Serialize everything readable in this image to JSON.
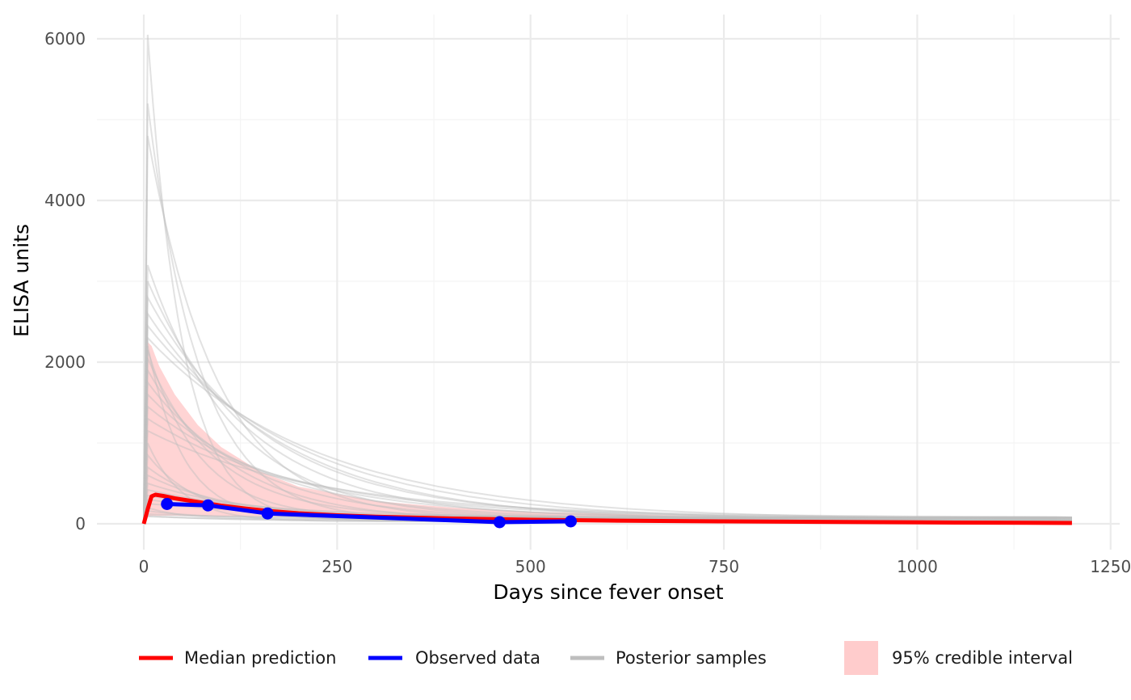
{
  "chart_data": {
    "type": "line",
    "title": "",
    "xlabel": "Days since fever onset",
    "ylabel": "ELISA units",
    "xlim": [
      -15,
      1265
    ],
    "ylim": [
      -300,
      6100
    ],
    "x_ticks": [
      0,
      250,
      500,
      750,
      1000,
      1250
    ],
    "x_tick_labels": [
      "0",
      "250",
      "500",
      "750",
      "1000",
      "1250"
    ],
    "y_ticks": [
      0,
      2000,
      4000,
      6000
    ],
    "y_tick_labels": [
      "0",
      "2000",
      "4000",
      "6000"
    ],
    "grid": true,
    "legend_position": "bottom",
    "colors": {
      "median": "#ff0000",
      "observed": "#0000ff",
      "samples": "#bebebe",
      "ci_fill": "#ffcccc",
      "grid_major": "#ebebeb",
      "grid_minor": "#f4f4f4"
    },
    "series": [
      {
        "name": "Median prediction",
        "x": [
          0,
          5,
          10,
          15,
          25,
          40,
          60,
          80,
          100,
          130,
          160,
          200,
          250,
          300,
          400,
          500,
          600,
          750,
          900,
          1050,
          1200
        ],
        "y": [
          0,
          180,
          340,
          360,
          345,
          315,
          285,
          255,
          225,
          190,
          160,
          130,
          105,
          88,
          65,
          50,
          40,
          30,
          22,
          15,
          10
        ]
      },
      {
        "name": "Observed data",
        "x": [
          30,
          83,
          160,
          460,
          552
        ],
        "y": [
          245,
          228,
          128,
          20,
          30
        ]
      },
      {
        "name": "Posterior samples",
        "peak_day": 5,
        "peaks": [
          6050,
          5200,
          4800,
          3200,
          3000,
          2800,
          2600,
          2450,
          2300,
          2200,
          2150,
          2050,
          1900,
          1750,
          1600,
          1450,
          1300,
          1150,
          1000,
          850,
          700,
          600,
          500,
          420,
          350,
          300,
          250,
          200,
          160,
          120,
          100,
          90
        ],
        "x_end": 1200
      },
      {
        "name": "95% credible interval",
        "x": [
          0,
          5,
          10,
          20,
          40,
          70,
          100,
          150,
          200,
          300,
          400,
          500,
          700,
          900,
          1200
        ],
        "lower": [
          0,
          90,
          100,
          100,
          100,
          95,
          92,
          88,
          85,
          80,
          72,
          65,
          55,
          45,
          30
        ],
        "upper": [
          0,
          2250,
          2200,
          1950,
          1600,
          1220,
          950,
          650,
          460,
          280,
          200,
          150,
          100,
          75,
          50
        ]
      }
    ],
    "legend": [
      {
        "label": "Median prediction",
        "kind": "line",
        "color": "#ff0000"
      },
      {
        "label": "Observed data",
        "kind": "line",
        "color": "#0000ff"
      },
      {
        "label": "Posterior samples",
        "kind": "line",
        "color": "#bebebe"
      },
      {
        "label": "95% credible interval",
        "kind": "fill",
        "color": "#ffcccc"
      }
    ]
  }
}
